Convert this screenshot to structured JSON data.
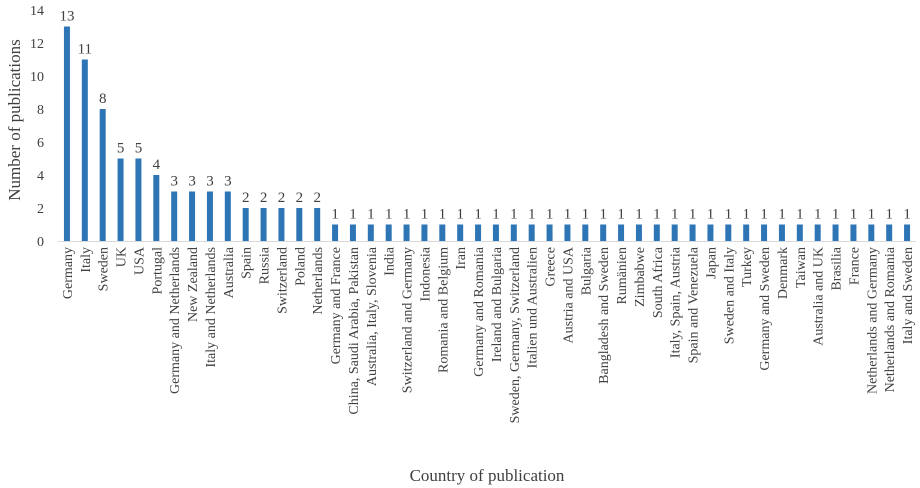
{
  "chart_data": {
    "type": "bar",
    "title": "",
    "xlabel": "Country of publication",
    "ylabel": "Number of publications",
    "ylim": [
      0,
      14
    ],
    "yticks": [
      0,
      2,
      4,
      6,
      8,
      10,
      12,
      14
    ],
    "grid": false,
    "legend": "none",
    "bar_color": "#2E75B6",
    "categories": [
      "Germany",
      "Italy",
      "Sweden",
      "UK",
      "USA",
      "Portugal",
      "Germany and Netherlands",
      "New Zealand",
      "Italy and Netherlands",
      "Australia",
      "Spain",
      "Russia",
      "Switzerland",
      "Poland",
      "Netherlands",
      "Germany and France",
      "China, Saudi Arabia, Pakistan",
      "Australia, Italy, Slovenia",
      "India",
      "Switzerland and Germany",
      "Indonesia",
      "Romania and Belgium",
      "Iran",
      "Germany and Romania",
      "Ireland and Bulgaria",
      "Sweden, Germany, Switzerland",
      "Italien und Australien",
      "Greece",
      "Austria and USA",
      "Bulgaria",
      "Bangladesh and Sweden",
      "Rumänien",
      "Zimbabwe",
      "South Africa",
      "Italy, Spain, Austria",
      "Spain and Venezuela",
      "Japan",
      "Sweden and Italy",
      "Turkey",
      "Germany and Sweden",
      "Denmark",
      "Taiwan",
      "Australia and UK",
      "Brasilia",
      "France",
      "Netherlands and Germany",
      "Netherlands and Romania",
      "Italy and Sweden"
    ],
    "values": [
      13,
      11,
      8,
      5,
      5,
      4,
      3,
      3,
      3,
      3,
      2,
      2,
      2,
      2,
      2,
      1,
      1,
      1,
      1,
      1,
      1,
      1,
      1,
      1,
      1,
      1,
      1,
      1,
      1,
      1,
      1,
      1,
      1,
      1,
      1,
      1,
      1,
      1,
      1,
      1,
      1,
      1,
      1,
      1,
      1,
      1,
      1,
      1
    ]
  }
}
